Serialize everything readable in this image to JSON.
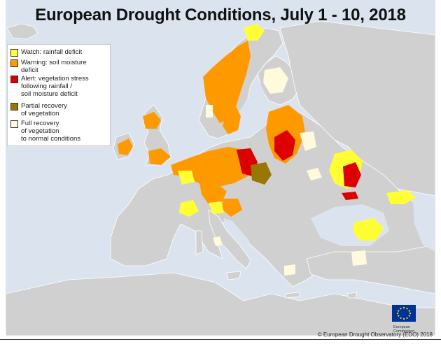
{
  "title": "European Drought Conditions, July 1 - 10, 2018",
  "legend": [
    {
      "label": "Watch: rainfall deficit",
      "color": "#ffff33"
    },
    {
      "label": "Warning: soil moisture\ndeficit",
      "color": "#ff9900"
    },
    {
      "label": "Alert: vegetation stress\nfollowing rainfall /\nsoil moisture deficit",
      "color": "#dd0000"
    },
    {
      "label": "Partial recovery\nof vegetation",
      "color": "#997700"
    },
    {
      "label": "Full recovery\nof vegetation\nto normal conditions",
      "color": "#fffadc"
    }
  ],
  "source": "© European Drought Observatory (EDO) 2018",
  "logo": {
    "line1": "European",
    "line2": "Commission"
  },
  "colors": {
    "sea": "#dbe4ee",
    "land": "#d0d0d0",
    "watch": "#ffff33",
    "warning": "#ff9900",
    "alert": "#dd0000",
    "partial": "#997700",
    "full": "#fffadc"
  }
}
